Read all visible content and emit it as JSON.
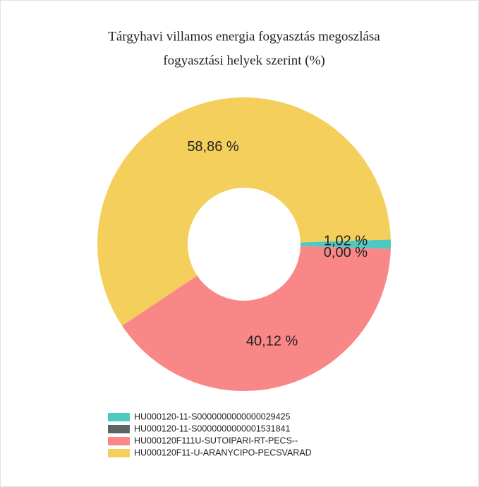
{
  "chart_data": {
    "type": "donut",
    "title": [
      "Tárgyhavi villamos energia fogyasztás megoszlása",
      "fogyasztási helyek szerint (%)"
    ],
    "categories": [
      "HU000120-11-S0000000000000029425",
      "HU000120-11-S0000000000001531841",
      "HU000120F111U-SUTOIPARI-RT-PECS--",
      "HU000120F11-U-ARANYCIPO-PECSVARAD"
    ],
    "values": [
      1.02,
      0.0,
      40.12,
      58.86
    ],
    "value_labels": [
      "1,02 %",
      "0,00 %",
      "40,12 %",
      "58,86 %"
    ],
    "colors": [
      "#4ec9c1",
      "#5b6565",
      "#f98787",
      "#f4cf5b"
    ]
  }
}
